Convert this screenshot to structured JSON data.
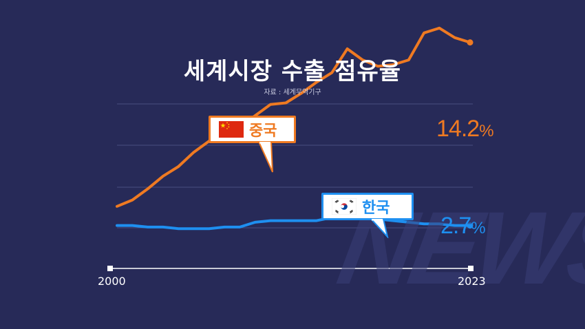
{
  "title": "세계시장 수출 점유율",
  "source": "자료 : 세계무역기구",
  "watermark": "NEWS",
  "colors": {
    "background": "#272a58",
    "china": "#ef7a22",
    "korea": "#1e8ff0",
    "grid": "#4a4e80"
  },
  "labels": {
    "china": {
      "name": "중국",
      "final_value": "14.2",
      "unit": "%"
    },
    "korea": {
      "name": "한국",
      "final_value": "2.7",
      "unit": "%"
    }
  },
  "x_axis": {
    "start_label": "2000",
    "end_label": "2023"
  },
  "chart_data": {
    "type": "line",
    "title": "세계시장 수출 점유율",
    "xlabel": "",
    "ylabel": "",
    "x": [
      2000,
      2001,
      2002,
      2003,
      2004,
      2005,
      2006,
      2007,
      2008,
      2009,
      2010,
      2011,
      2012,
      2013,
      2014,
      2015,
      2016,
      2017,
      2018,
      2019,
      2020,
      2021,
      2022,
      2023
    ],
    "ylim": [
      0,
      16
    ],
    "grid": true,
    "series": [
      {
        "name": "중국",
        "color": "#ef7a22",
        "values": [
          3.9,
          4.3,
          5.0,
          5.8,
          6.4,
          7.3,
          8.0,
          8.7,
          8.9,
          9.6,
          10.3,
          10.4,
          11.0,
          11.7,
          12.3,
          13.8,
          13.1,
          12.7,
          12.8,
          13.1,
          14.8,
          15.1,
          14.5,
          14.2
        ]
      },
      {
        "name": "한국",
        "color": "#1e8ff0",
        "values": [
          2.7,
          2.7,
          2.6,
          2.6,
          2.5,
          2.5,
          2.5,
          2.6,
          2.6,
          2.9,
          3.0,
          3.0,
          3.0,
          3.0,
          3.2,
          3.2,
          3.2,
          3.1,
          3.0,
          2.9,
          2.8,
          2.8,
          2.7,
          2.7
        ]
      }
    ]
  }
}
